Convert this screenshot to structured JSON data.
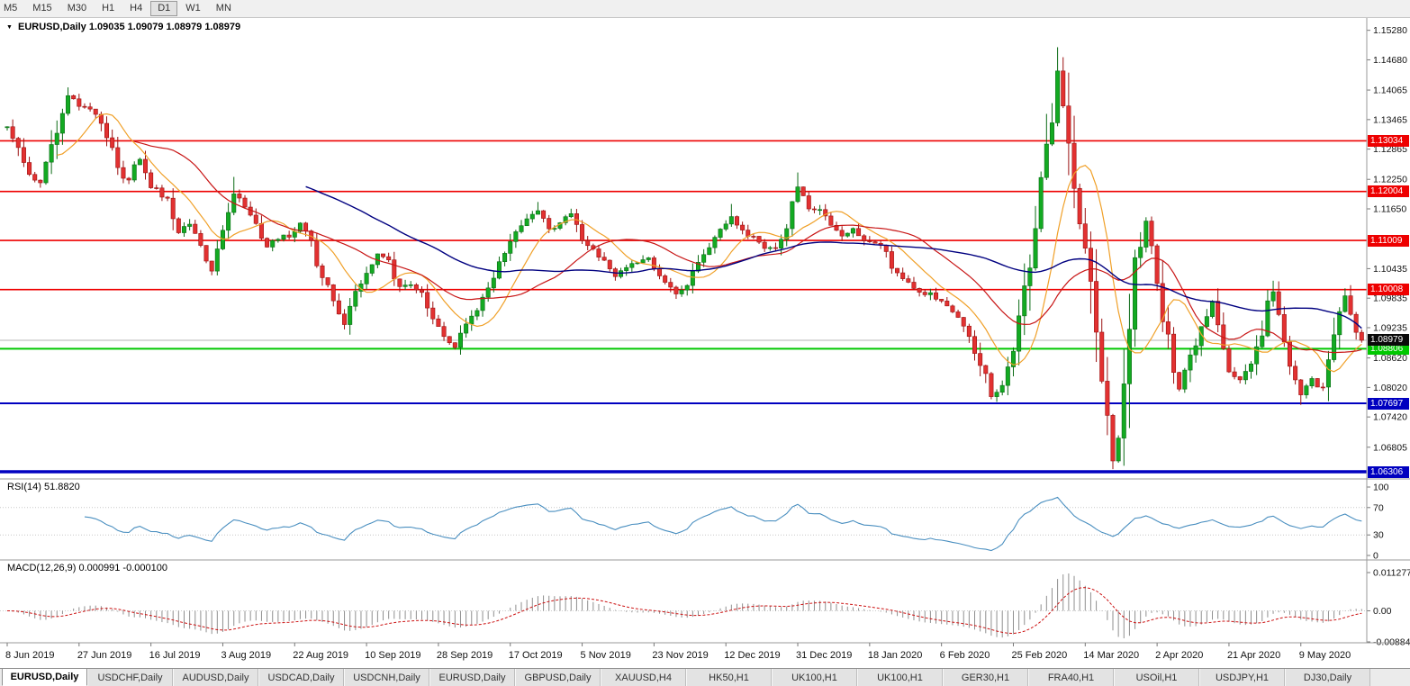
{
  "toolbar": {
    "timeframes": [
      "M5",
      "M15",
      "M30",
      "H1",
      "H4",
      "D1",
      "W1",
      "MN"
    ],
    "active": "D1"
  },
  "header": {
    "symbol": "EURUSD,Daily",
    "ohlc": "1.09035 1.09079 1.08979 1.08979"
  },
  "price_axis": {
    "ticks": [
      "1.15280",
      "1.14680",
      "1.14065",
      "1.13465",
      "1.12865",
      "1.12250",
      "1.11650",
      "1.10435",
      "1.09835",
      "1.09235",
      "1.08620",
      "1.08020",
      "1.07420",
      "1.06805"
    ]
  },
  "levels": [
    {
      "label": "1.13034",
      "color": "#ee0000",
      "width": 1.6
    },
    {
      "label": "1.12004",
      "color": "#ee0000",
      "width": 1.6
    },
    {
      "label": "1.11009",
      "color": "#ee0000",
      "width": 1.6
    },
    {
      "label": "1.10008",
      "color": "#ee0000",
      "width": 1.6
    },
    {
      "label": "1.08806",
      "color": "#00c800",
      "width": 2
    },
    {
      "label": "1.07697",
      "color": "#0000c0",
      "width": 2
    },
    {
      "label": "1.06306",
      "color": "#0000c0",
      "width": 3.5
    }
  ],
  "current_price": {
    "label": "1.08979",
    "bg": "#0a0a0a",
    "line_color": "#b4b4b4"
  },
  "candles": {
    "count": 246,
    "waypoints": [
      [
        0,
        1.133
      ],
      [
        2,
        1.129
      ],
      [
        4,
        1.124
      ],
      [
        6,
        1.1215
      ],
      [
        8,
        1.129
      ],
      [
        10,
        1.137
      ],
      [
        11,
        1.1395
      ],
      [
        13,
        1.1375
      ],
      [
        15,
        1.1368
      ],
      [
        17,
        1.134
      ],
      [
        19,
        1.1285
      ],
      [
        21,
        1.123
      ],
      [
        22,
        1.122
      ],
      [
        24,
        1.127
      ],
      [
        26,
        1.1215
      ],
      [
        29,
        1.118
      ],
      [
        31,
        1.112
      ],
      [
        33,
        1.1135
      ],
      [
        35,
        1.1085
      ],
      [
        37,
        1.104
      ],
      [
        38,
        1.1075
      ],
      [
        40,
        1.1155
      ],
      [
        41,
        1.12
      ],
      [
        43,
        1.1175
      ],
      [
        45,
        1.1135
      ],
      [
        47,
        1.109
      ],
      [
        49,
        1.1105
      ],
      [
        51,
        1.111
      ],
      [
        53,
        1.114
      ],
      [
        55,
        1.109
      ],
      [
        57,
        1.103
      ],
      [
        59,
        1.0975
      ],
      [
        61,
        1.093
      ],
      [
        63,
        1.099
      ],
      [
        65,
        1.103
      ],
      [
        67,
        1.107
      ],
      [
        69,
        1.106
      ],
      [
        71,
        1.1005
      ],
      [
        73,
        1.1015
      ],
      [
        75,
        1.099
      ],
      [
        77,
        1.0935
      ],
      [
        79,
        1.0905
      ],
      [
        81,
        1.0888
      ],
      [
        83,
        1.093
      ],
      [
        85,
        1.0965
      ],
      [
        87,
        1.1
      ],
      [
        89,
        1.105
      ],
      [
        91,
        1.1095
      ],
      [
        93,
        1.113
      ],
      [
        95,
        1.1155
      ],
      [
        96,
        1.1165
      ],
      [
        98,
        1.112
      ],
      [
        100,
        1.114
      ],
      [
        102,
        1.116
      ],
      [
        104,
        1.1105
      ],
      [
        107,
        1.107
      ],
      [
        110,
        1.103
      ],
      [
        113,
        1.105
      ],
      [
        116,
        1.106
      ],
      [
        119,
        1.1015
      ],
      [
        121,
        1.0995
      ],
      [
        123,
        1.1015
      ],
      [
        125,
        1.106
      ],
      [
        127,
        1.109
      ],
      [
        129,
        1.112
      ],
      [
        131,
        1.1145
      ],
      [
        133,
        1.112
      ],
      [
        135,
        1.1105
      ],
      [
        137,
        1.1085
      ],
      [
        139,
        1.109
      ],
      [
        141,
        1.113
      ],
      [
        143,
        1.121
      ],
      [
        145,
        1.117
      ],
      [
        147,
        1.116
      ],
      [
        149,
        1.113
      ],
      [
        151,
        1.1105
      ],
      [
        153,
        1.1125
      ],
      [
        155,
        1.1095
      ],
      [
        158,
        1.1095
      ],
      [
        160,
        1.104
      ],
      [
        162,
        1.102
      ],
      [
        164,
        1.1005
      ],
      [
        166,
        1.0995
      ],
      [
        168,
        1.0985
      ],
      [
        170,
        1.0965
      ],
      [
        172,
        1.094
      ],
      [
        174,
        1.0905
      ],
      [
        176,
        1.0855
      ],
      [
        178,
        1.0785
      ],
      [
        180,
        1.081
      ],
      [
        182,
        1.0865
      ],
      [
        183,
        1.0935
      ],
      [
        184,
        1.1
      ],
      [
        185,
        1.1065
      ],
      [
        186,
        1.1135
      ],
      [
        187,
        1.12
      ],
      [
        188,
        1.1285
      ],
      [
        189,
        1.1365
      ],
      [
        190,
        1.1445
      ],
      [
        191,
        1.138
      ],
      [
        192,
        1.1285
      ],
      [
        193,
        1.118
      ],
      [
        194,
        1.113
      ],
      [
        195,
        1.109
      ],
      [
        196,
        1.099
      ],
      [
        197,
        1.092
      ],
      [
        198,
        1.082
      ],
      [
        199,
        1.072
      ],
      [
        200,
        1.066
      ],
      [
        201,
        1.068
      ],
      [
        202,
        1.077
      ],
      [
        203,
        1.09
      ],
      [
        204,
        1.104
      ],
      [
        205,
        1.11
      ],
      [
        206,
        1.114
      ],
      [
        207,
        1.108
      ],
      [
        208,
        1.103
      ],
      [
        209,
        1.096
      ],
      [
        210,
        1.0905
      ],
      [
        211,
        1.085
      ],
      [
        212,
        1.08
      ],
      [
        213,
        1.083
      ],
      [
        214,
        1.0865
      ],
      [
        215,
        1.0895
      ],
      [
        216,
        1.0915
      ],
      [
        217,
        1.095
      ],
      [
        218,
        1.098
      ],
      [
        219,
        1.092
      ],
      [
        220,
        1.087
      ],
      [
        221,
        1.084
      ],
      [
        222,
        1.082
      ],
      [
        223,
        1.0818
      ],
      [
        224,
        1.0828
      ],
      [
        225,
        1.0855
      ],
      [
        226,
        1.088
      ],
      [
        227,
        1.092
      ],
      [
        228,
        1.0975
      ],
      [
        229,
        1.0995
      ],
      [
        230,
        1.094
      ],
      [
        231,
        1.089
      ],
      [
        232,
        1.0845
      ],
      [
        233,
        1.0815
      ],
      [
        234,
        1.079
      ],
      [
        235,
        1.08
      ],
      [
        236,
        1.0815
      ],
      [
        237,
        1.0805
      ],
      [
        238,
        1.081
      ],
      [
        239,
        1.0855
      ],
      [
        240,
        1.09
      ],
      [
        241,
        1.0945
      ],
      [
        242,
        1.0985
      ],
      [
        243,
        1.0945
      ],
      [
        244,
        1.0912
      ],
      [
        245,
        1.0898
      ]
    ],
    "overrides": {
      "11": {
        "high": 1.1412
      },
      "41": {
        "high": 1.123
      },
      "81": {
        "low": 1.0879
      },
      "96": {
        "high": 1.1179
      },
      "131": {
        "high": 1.1175
      },
      "143": {
        "high": 1.1239
      },
      "178": {
        "low": 1.0778
      },
      "190": {
        "high": 1.14936
      },
      "200": {
        "low": 1.0636
      },
      "206": {
        "high": 1.1148
      },
      "229": {
        "high": 1.1019
      },
      "234": {
        "low": 1.07665
      },
      "242": {
        "high": 1.10035
      },
      "245": {
        "close": 1.08979
      }
    },
    "up_color": "#13aa22",
    "up_border": "#0b6b15",
    "down_color": "#e23131",
    "down_border": "#9b1111"
  },
  "moving_averages": [
    {
      "period": 10,
      "color": "#f0a028",
      "width": 1.2
    },
    {
      "period": 24,
      "color": "#c81616",
      "width": 1.2
    },
    {
      "period": 55,
      "color": "#000080",
      "width": 1.4
    }
  ],
  "rsi": {
    "name": "RSI(14)",
    "value": "51.8820",
    "period": 14,
    "ticks": [
      "100",
      "70",
      "30",
      "0"
    ],
    "levels": [
      70,
      30
    ],
    "color": "#4a8fc0"
  },
  "macd": {
    "name": "MACD(12,26,9)",
    "values": "0.000991 -0.000100",
    "fast": 12,
    "slow": 26,
    "signal": 9,
    "ticks": [
      "0.011277",
      "0.00",
      "-0.008845"
    ],
    "hist_color": "#8f8f8f",
    "signal_color": "#cc1111"
  },
  "date_axis": [
    "8 Jun 2019",
    "27 Jun 2019",
    "16 Jul 2019",
    "3 Aug 2019",
    "22 Aug 2019",
    "10 Sep 2019",
    "28 Sep 2019",
    "17 Oct 2019",
    "5 Nov 2019",
    "23 Nov 2019",
    "12 Dec 2019",
    "31 Dec 2019",
    "18 Jan 2020",
    "6 Feb 2020",
    "25 Feb 2020",
    "14 Mar 2020",
    "2 Apr 2020",
    "21 Apr 2020",
    "9 May 2020"
  ],
  "tabs": [
    {
      "label": "EURUSD,Daily",
      "active": true
    },
    {
      "label": "USDCHF,Daily",
      "active": false
    },
    {
      "label": "AUDUSD,Daily",
      "active": false
    },
    {
      "label": "USDCAD,Daily",
      "active": false
    },
    {
      "label": "USDCNH,Daily",
      "active": false
    },
    {
      "label": "EURUSD,Daily",
      "active": false
    },
    {
      "label": "GBPUSD,Daily",
      "active": false
    },
    {
      "label": "XAUUSD,H4",
      "active": false
    },
    {
      "label": "HK50,H1",
      "active": false
    },
    {
      "label": "UK100,H1",
      "active": false
    },
    {
      "label": "UK100,H1",
      "active": false
    },
    {
      "label": "GER30,H1",
      "active": false
    },
    {
      "label": "FRA40,H1",
      "active": false
    },
    {
      "label": "USOil,H1",
      "active": false
    },
    {
      "label": "USDJPY,H1",
      "active": false
    },
    {
      "label": "DJ30,Daily",
      "active": false
    }
  ]
}
